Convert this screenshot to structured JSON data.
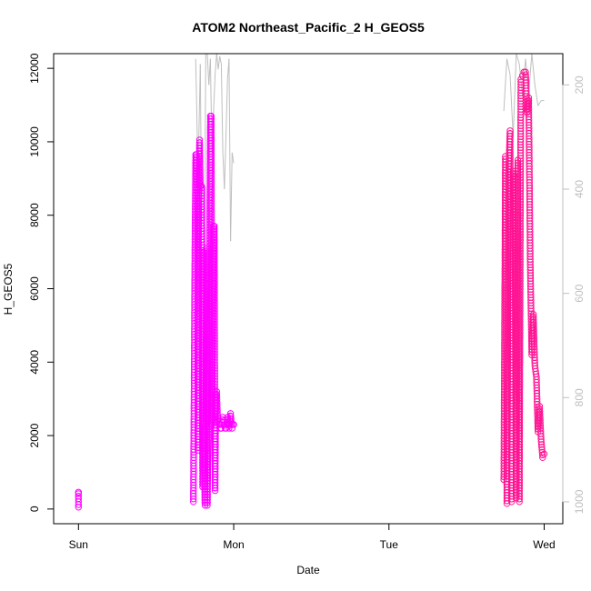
{
  "chart_data": {
    "type": "scatter",
    "title": "ATOM2 Northeast_Pacific_2 H_GEOS5",
    "xlabel": "Date",
    "ylabel": "H_GEOS5",
    "x_tick_labels": [
      "Sun",
      "Mon",
      "Tue",
      "Wed"
    ],
    "x_range_days": [
      -0.16,
      3.12
    ],
    "ylim": [
      -400,
      12400
    ],
    "y_ticks": [
      0,
      2000,
      4000,
      6000,
      8000,
      10000,
      12000
    ],
    "y2_ticks": [
      200,
      400,
      600,
      800,
      1000
    ],
    "y2_range": [
      140,
      1042
    ],
    "y2_color": "#bfbfbf",
    "grid": false,
    "legend": "none",
    "series": [
      {
        "color": "#ff00ff",
        "marker": "open-circle",
        "segments": [
          {
            "x": [
              0.0,
              0.0,
              0.0,
              0.0,
              0.0,
              0.0,
              0.0
            ],
            "y": [
              50,
              120,
              200,
              280,
              350,
              420,
              460
            ]
          },
          {
            "x": [
              0.74,
              0.745,
              0.75,
              0.755,
              0.76,
              0.765,
              0.77,
              0.775,
              0.78,
              0.785,
              0.79,
              0.795,
              0.8,
              0.805,
              0.81,
              0.815,
              0.82,
              0.825,
              0.83,
              0.835,
              0.84,
              0.845,
              0.85,
              0.855,
              0.86,
              0.865,
              0.87,
              0.875,
              0.88,
              0.885,
              0.89,
              0.895,
              0.9,
              0.905,
              0.91,
              0.915,
              0.92,
              0.925,
              0.93,
              0.935,
              0.94,
              0.945,
              0.95,
              0.955,
              0.96,
              0.965,
              0.97,
              0.975,
              0.98,
              0.985,
              0.99,
              0.995,
              1.0
            ],
            "y": [
              200,
              3500,
              7200,
              9650,
              9650,
              8400,
              1600,
              9200,
              10050,
              8800,
              8800,
              8750,
              600,
              7000,
              1200,
              100,
              3200,
              7100,
              100,
              1600,
              2100,
              7900,
              10700,
              10700,
              2300,
              4800,
              7700,
              7700,
              500,
              3100,
              3200,
              2600,
              2400,
              2300,
              2300,
              2200,
              2200,
              2300,
              2500,
              2400,
              2300,
              2200,
              2200,
              2300,
              2500,
              2300,
              2200,
              2400,
              2600,
              2300,
              2200,
              2300,
              2300
            ]
          }
        ]
      },
      {
        "color": "#ff1493",
        "marker": "open-circle",
        "segments": [
          {
            "x": [
              2.74,
              2.75,
              2.76,
              2.77,
              2.78,
              2.79,
              2.8,
              2.81,
              2.82,
              2.83,
              2.84,
              2.85,
              2.86,
              2.87,
              2.88,
              2.89,
              2.9,
              2.91,
              2.92,
              2.93,
              2.94,
              2.95,
              2.96,
              2.97,
              2.98,
              2.99,
              3.0
            ],
            "y": [
              800,
              9600,
              150,
              9100,
              10300,
              200,
              9200,
              9000,
              300,
              9500,
              200,
              11700,
              11800,
              11900,
              11900,
              10800,
              11200,
              6800,
              4200,
              5300,
              3900,
              3600,
              2100,
              2800,
              1900,
              1400,
              1500
            ]
          }
        ]
      },
      {
        "color": "#bfbfbf",
        "marker": "line",
        "axis": "right",
        "segments": [
          {
            "x": [
              0.755,
              0.76,
              0.77,
              0.785,
              0.79,
              0.8,
              0.81,
              0.82,
              0.83,
              0.84,
              0.85,
              0.86,
              0.87,
              0.88,
              0.89,
              0.9,
              0.91,
              0.92,
              0.93,
              0.94,
              0.95,
              0.96,
              0.97,
              0.98,
              0.99,
              1.0
            ],
            "y": [
              150,
              220,
              380,
              160,
              350,
              410,
              600,
              140,
              140,
              200,
              150,
              330,
              250,
              180,
              140,
              170,
              145,
              160,
              330,
              400,
              300,
              190,
              150,
              500,
              330,
              350
            ]
          },
          {
            "x": [
              2.74,
              2.76,
              2.78,
              2.8,
              2.82,
              2.84,
              2.86,
              2.88,
              2.9,
              2.92,
              2.94,
              2.96,
              2.98,
              3.0
            ],
            "y": [
              250,
              150,
              180,
              300,
              140,
              160,
              220,
              150,
              220,
              140,
              200,
              240,
              230,
              230
            ]
          }
        ]
      }
    ]
  }
}
